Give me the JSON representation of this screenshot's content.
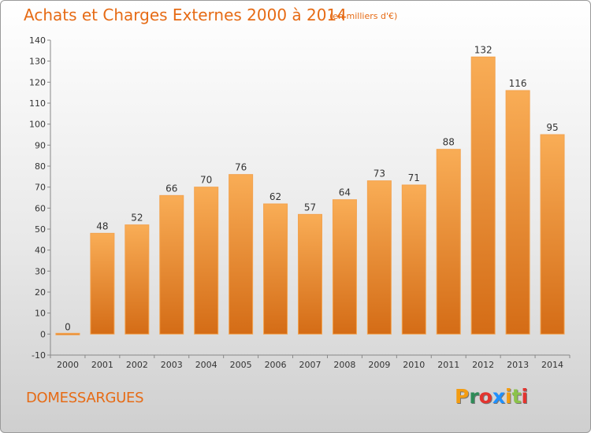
{
  "header": {
    "title": "Achats et Charges Externes 2000 à 2014",
    "subtitle": "(en milliers d'€)"
  },
  "footer": {
    "place": "DOMESSARGUES",
    "logo": "Proxiti",
    "logo_colors": [
      "#f39c12",
      "#2e8b57",
      "#e3342f",
      "#1e90ff",
      "#f39c12",
      "#8bc34a",
      "#e3342f"
    ]
  },
  "colors": {
    "bar_light": "#f7a84d",
    "bar_dark": "#d9731c",
    "title": "#e66b15"
  },
  "chart_data": {
    "type": "bar",
    "title": "Achats et Charges Externes 2000 à 2014",
    "subtitle": "(en milliers d'€)",
    "categories": [
      "2000",
      "2001",
      "2002",
      "2003",
      "2004",
      "2005",
      "2006",
      "2007",
      "2008",
      "2009",
      "2010",
      "2011",
      "2012",
      "2013",
      "2014"
    ],
    "values": [
      0,
      48,
      52,
      66,
      70,
      76,
      62,
      57,
      64,
      73,
      71,
      88,
      132,
      116,
      95
    ],
    "ylim": [
      -10,
      140
    ],
    "yticks": [
      -10,
      0,
      10,
      20,
      30,
      40,
      50,
      60,
      70,
      80,
      90,
      100,
      110,
      120,
      130,
      140
    ],
    "grid": false,
    "legend": "none"
  }
}
